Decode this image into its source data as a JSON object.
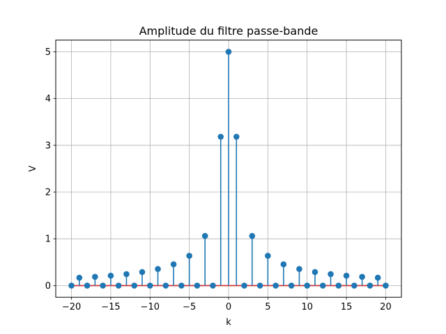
{
  "chart_data": {
    "type": "stem",
    "title": "Amplitude du filtre passe-bande",
    "xlabel": "k",
    "ylabel": "V",
    "xlim": [
      -22,
      22
    ],
    "ylim": [
      -0.25,
      5.25
    ],
    "xticks": [
      -20,
      -15,
      -10,
      -5,
      0,
      5,
      10,
      15,
      20
    ],
    "xtick_labels": [
      "−20",
      "−15",
      "−10",
      "−5",
      "0",
      "5",
      "10",
      "15",
      "20"
    ],
    "yticks": [
      0,
      1,
      2,
      3,
      4,
      5
    ],
    "ytick_labels": [
      "0",
      "1",
      "2",
      "3",
      "4",
      "5"
    ],
    "grid": true,
    "x": [
      -20,
      -19,
      -18,
      -17,
      -16,
      -15,
      -14,
      -13,
      -12,
      -11,
      -10,
      -9,
      -8,
      -7,
      -6,
      -5,
      -4,
      -3,
      -2,
      -1,
      0,
      1,
      2,
      3,
      4,
      5,
      6,
      7,
      8,
      9,
      10,
      11,
      12,
      13,
      14,
      15,
      16,
      17,
      18,
      19,
      20
    ],
    "values": [
      0,
      0.168,
      0,
      0.187,
      0,
      0.212,
      0,
      0.245,
      0,
      0.289,
      0,
      0.354,
      0,
      0.455,
      0,
      0.637,
      0,
      1.061,
      0,
      3.183,
      5,
      3.183,
      0,
      1.061,
      0,
      0.637,
      0,
      0.455,
      0,
      0.354,
      0,
      0.289,
      0,
      0.245,
      0,
      0.212,
      0,
      0.187,
      0,
      0.168,
      0
    ],
    "colors": {
      "stem": "#1f77b4",
      "marker": "#1f77b4",
      "baseline": "#d62728",
      "grid": "#b0b0b0",
      "axes": "#000000"
    }
  }
}
